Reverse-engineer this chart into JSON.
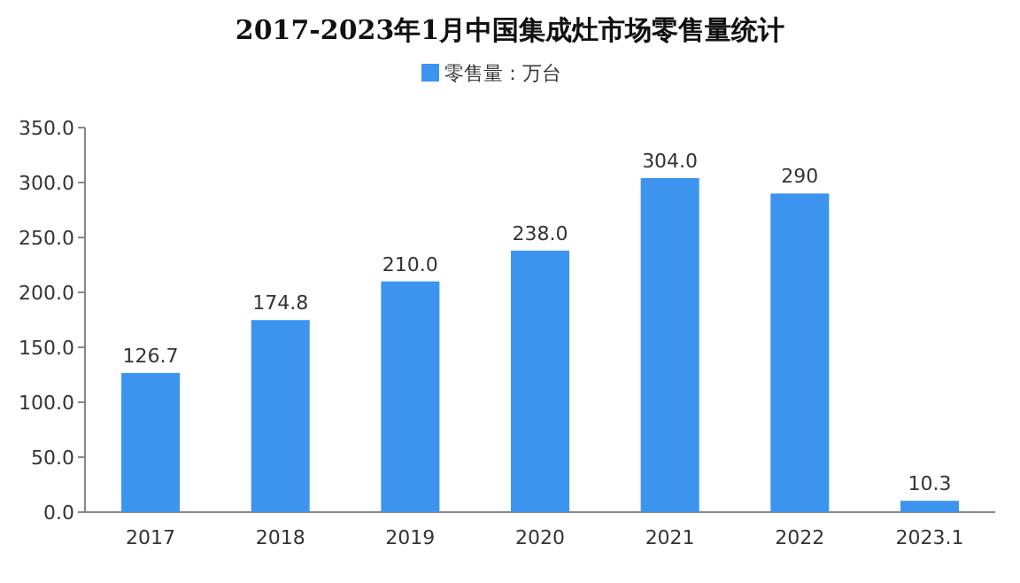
{
  "chart_data": {
    "type": "bar",
    "title": "2017-2023年1月中国集成灶市场零售量统计",
    "categories": [
      "2017",
      "2018",
      "2019",
      "2020",
      "2021",
      "2022",
      "2023.1"
    ],
    "series": [
      {
        "name": "零售量：万台",
        "color": "#3d94ef",
        "values": [
          126.7,
          174.8,
          210.0,
          238.0,
          304.0,
          290,
          10.3
        ],
        "value_labels": [
          "126.7",
          "174.8",
          "210.0",
          "238.0",
          "304.0",
          "290",
          "10.3"
        ]
      }
    ],
    "ylim": [
      0,
      350
    ],
    "yticks": [
      {
        "value": 0,
        "label": "0.0"
      },
      {
        "value": 50,
        "label": "50.0"
      },
      {
        "value": 100,
        "label": "100.0"
      },
      {
        "value": 150,
        "label": "150.0"
      },
      {
        "value": 200,
        "label": "200.0"
      },
      {
        "value": 250,
        "label": "250.0"
      },
      {
        "value": 300,
        "label": "300.0"
      },
      {
        "value": 350,
        "label": "350.0"
      }
    ],
    "legend": "top",
    "grid": false
  }
}
